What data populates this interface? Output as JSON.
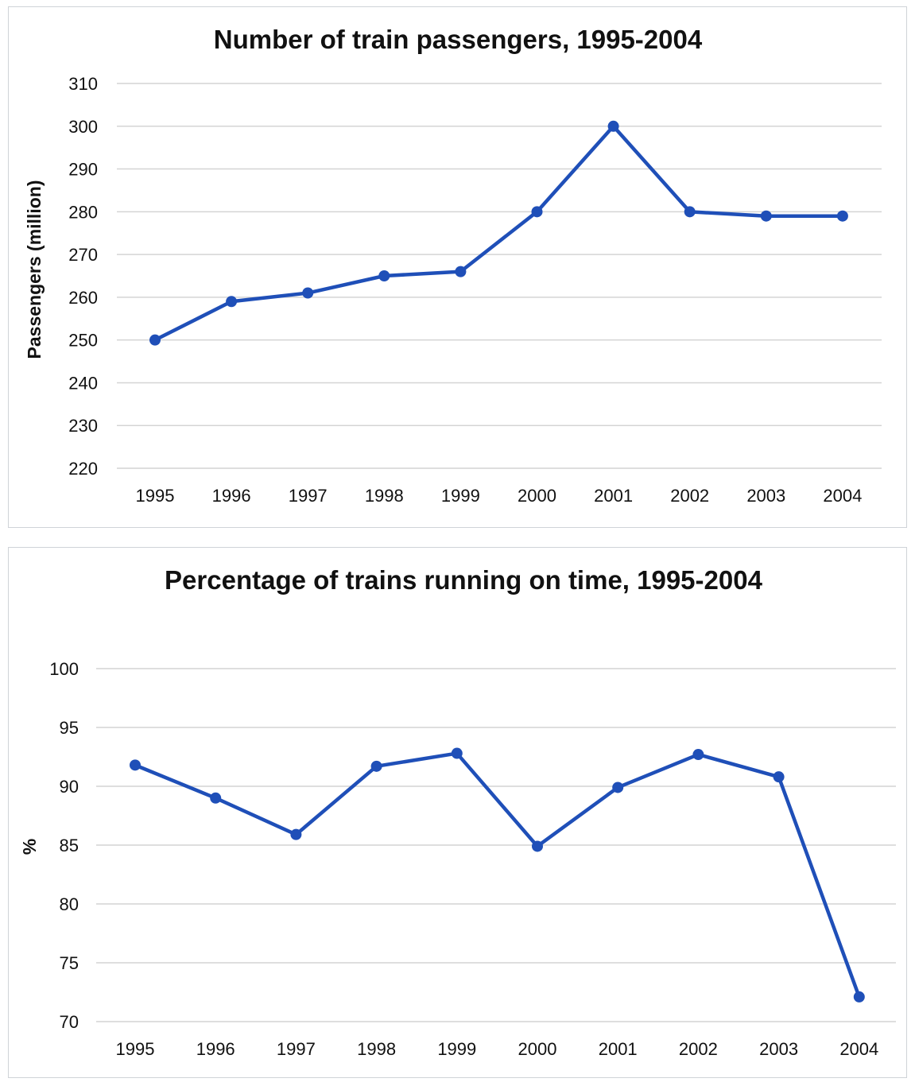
{
  "chart_data": [
    {
      "type": "line",
      "title": "Number of train passengers, 1995-2004",
      "xlabel": "",
      "ylabel": "Passengers (million)",
      "categories": [
        "1995",
        "1996",
        "1997",
        "1998",
        "1999",
        "2000",
        "2001",
        "2002",
        "2003",
        "2004"
      ],
      "ylim": [
        220,
        310
      ],
      "yticks": [
        "220",
        "230",
        "240",
        "250",
        "260",
        "270",
        "280",
        "290",
        "300",
        "310"
      ],
      "grid": true,
      "legend": "none",
      "line_color": "#1f4fb8",
      "series": [
        {
          "values": [
            250,
            259,
            261,
            265,
            266,
            280,
            300,
            280,
            279,
            279
          ]
        }
      ]
    },
    {
      "type": "line",
      "title": "Percentage of trains running on time, 1995-2004",
      "xlabel": "",
      "ylabel": "%",
      "categories": [
        "1995",
        "1996",
        "1997",
        "1998",
        "1999",
        "2000",
        "2001",
        "2002",
        "2003",
        "2004"
      ],
      "ylim": [
        70,
        100
      ],
      "yticks": [
        "70",
        "75",
        "80",
        "85",
        "90",
        "95",
        "100"
      ],
      "grid": true,
      "legend": "none",
      "line_color": "#1f4fb8",
      "series": [
        {
          "values": [
            91.8,
            89,
            85.9,
            91.7,
            92.8,
            84.9,
            89.9,
            92.7,
            90.8,
            72.1
          ]
        }
      ]
    }
  ]
}
